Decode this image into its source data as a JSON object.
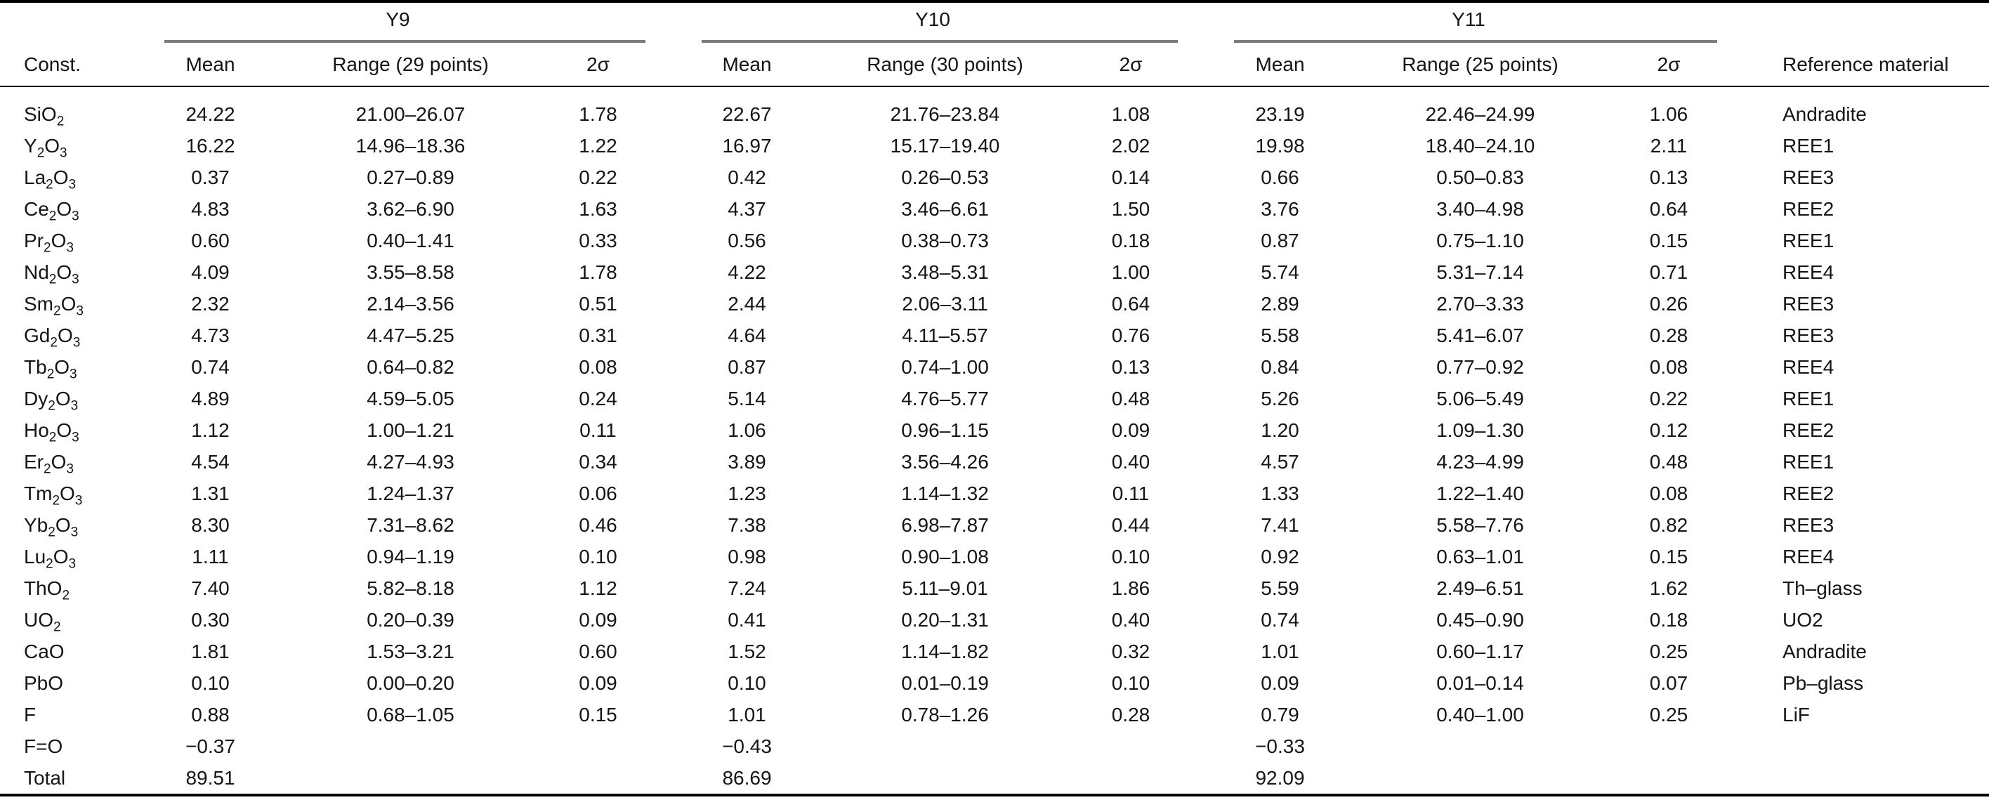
{
  "table": {
    "const_header": "Const.",
    "reference_header": "Reference material",
    "groups": [
      {
        "label": "Y9",
        "mean_label": "Mean",
        "range_label": "Range (29 points)",
        "sigma_label": "2σ"
      },
      {
        "label": "Y10",
        "mean_label": "Mean",
        "range_label": "Range (30 points)",
        "sigma_label": "2σ"
      },
      {
        "label": "Y11",
        "mean_label": "Mean",
        "range_label": "Range (25 points)",
        "sigma_label": "2σ"
      }
    ],
    "rows": [
      {
        "const": [
          [
            "SiO",
            0
          ],
          [
            "2",
            1
          ]
        ],
        "y9": [
          "24.22",
          "21.00–26.07",
          "1.78"
        ],
        "y10": [
          "22.67",
          "21.76–23.84",
          "1.08"
        ],
        "y11": [
          "23.19",
          "22.46–24.99",
          "1.06"
        ],
        "ref": "Andradite"
      },
      {
        "const": [
          [
            "Y",
            0
          ],
          [
            "2",
            1
          ],
          [
            "O",
            0
          ],
          [
            "3",
            1
          ]
        ],
        "y9": [
          "16.22",
          "14.96–18.36",
          "1.22"
        ],
        "y10": [
          "16.97",
          "15.17–19.40",
          "2.02"
        ],
        "y11": [
          "19.98",
          "18.40–24.10",
          "2.11"
        ],
        "ref": "REE1"
      },
      {
        "const": [
          [
            "La",
            0
          ],
          [
            "2",
            1
          ],
          [
            "O",
            0
          ],
          [
            "3",
            1
          ]
        ],
        "y9": [
          "0.37",
          "0.27–0.89",
          "0.22"
        ],
        "y10": [
          "0.42",
          "0.26–0.53",
          "0.14"
        ],
        "y11": [
          "0.66",
          "0.50–0.83",
          "0.13"
        ],
        "ref": "REE3"
      },
      {
        "const": [
          [
            "Ce",
            0
          ],
          [
            "2",
            1
          ],
          [
            "O",
            0
          ],
          [
            "3",
            1
          ]
        ],
        "y9": [
          "4.83",
          "3.62–6.90",
          "1.63"
        ],
        "y10": [
          "4.37",
          "3.46–6.61",
          "1.50"
        ],
        "y11": [
          "3.76",
          "3.40–4.98",
          "0.64"
        ],
        "ref": "REE2"
      },
      {
        "const": [
          [
            "Pr",
            0
          ],
          [
            "2",
            1
          ],
          [
            "O",
            0
          ],
          [
            "3",
            1
          ]
        ],
        "y9": [
          "0.60",
          "0.40–1.41",
          "0.33"
        ],
        "y10": [
          "0.56",
          "0.38–0.73",
          "0.18"
        ],
        "y11": [
          "0.87",
          "0.75–1.10",
          "0.15"
        ],
        "ref": "REE1"
      },
      {
        "const": [
          [
            "Nd",
            0
          ],
          [
            "2",
            1
          ],
          [
            "O",
            0
          ],
          [
            "3",
            1
          ]
        ],
        "y9": [
          "4.09",
          "3.55–8.58",
          "1.78"
        ],
        "y10": [
          "4.22",
          "3.48–5.31",
          "1.00"
        ],
        "y11": [
          "5.74",
          "5.31–7.14",
          "0.71"
        ],
        "ref": "REE4"
      },
      {
        "const": [
          [
            "Sm",
            0
          ],
          [
            "2",
            1
          ],
          [
            "O",
            0
          ],
          [
            "3",
            1
          ]
        ],
        "y9": [
          "2.32",
          "2.14–3.56",
          "0.51"
        ],
        "y10": [
          "2.44",
          "2.06–3.11",
          "0.64"
        ],
        "y11": [
          "2.89",
          "2.70–3.33",
          "0.26"
        ],
        "ref": "REE3"
      },
      {
        "const": [
          [
            "Gd",
            0
          ],
          [
            "2",
            1
          ],
          [
            "O",
            0
          ],
          [
            "3",
            1
          ]
        ],
        "y9": [
          "4.73",
          "4.47–5.25",
          "0.31"
        ],
        "y10": [
          "4.64",
          "4.11–5.57",
          "0.76"
        ],
        "y11": [
          "5.58",
          "5.41–6.07",
          "0.28"
        ],
        "ref": "REE3"
      },
      {
        "const": [
          [
            "Tb",
            0
          ],
          [
            "2",
            1
          ],
          [
            "O",
            0
          ],
          [
            "3",
            1
          ]
        ],
        "y9": [
          "0.74",
          "0.64–0.82",
          "0.08"
        ],
        "y10": [
          "0.87",
          "0.74–1.00",
          "0.13"
        ],
        "y11": [
          "0.84",
          "0.77–0.92",
          "0.08"
        ],
        "ref": "REE4"
      },
      {
        "const": [
          [
            "Dy",
            0
          ],
          [
            "2",
            1
          ],
          [
            "O",
            0
          ],
          [
            "3",
            1
          ]
        ],
        "y9": [
          "4.89",
          "4.59–5.05",
          "0.24"
        ],
        "y10": [
          "5.14",
          "4.76–5.77",
          "0.48"
        ],
        "y11": [
          "5.26",
          "5.06–5.49",
          "0.22"
        ],
        "ref": "REE1"
      },
      {
        "const": [
          [
            "Ho",
            0
          ],
          [
            "2",
            1
          ],
          [
            "O",
            0
          ],
          [
            "3",
            1
          ]
        ],
        "y9": [
          "1.12",
          "1.00–1.21",
          "0.11"
        ],
        "y10": [
          "1.06",
          "0.96–1.15",
          "0.09"
        ],
        "y11": [
          "1.20",
          "1.09–1.30",
          "0.12"
        ],
        "ref": "REE2"
      },
      {
        "const": [
          [
            "Er",
            0
          ],
          [
            "2",
            1
          ],
          [
            "O",
            0
          ],
          [
            "3",
            1
          ]
        ],
        "y9": [
          "4.54",
          "4.27–4.93",
          "0.34"
        ],
        "y10": [
          "3.89",
          "3.56–4.26",
          "0.40"
        ],
        "y11": [
          "4.57",
          "4.23–4.99",
          "0.48"
        ],
        "ref": "REE1"
      },
      {
        "const": [
          [
            "Tm",
            0
          ],
          [
            "2",
            1
          ],
          [
            "O",
            0
          ],
          [
            "3",
            1
          ]
        ],
        "y9": [
          "1.31",
          "1.24–1.37",
          "0.06"
        ],
        "y10": [
          "1.23",
          "1.14–1.32",
          "0.11"
        ],
        "y11": [
          "1.33",
          "1.22–1.40",
          "0.08"
        ],
        "ref": "REE2"
      },
      {
        "const": [
          [
            "Yb",
            0
          ],
          [
            "2",
            1
          ],
          [
            "O",
            0
          ],
          [
            "3",
            1
          ]
        ],
        "y9": [
          "8.30",
          "7.31–8.62",
          "0.46"
        ],
        "y10": [
          "7.38",
          "6.98–7.87",
          "0.44"
        ],
        "y11": [
          "7.41",
          "5.58–7.76",
          "0.82"
        ],
        "ref": "REE3"
      },
      {
        "const": [
          [
            "Lu",
            0
          ],
          [
            "2",
            1
          ],
          [
            "O",
            0
          ],
          [
            "3",
            1
          ]
        ],
        "y9": [
          "1.11",
          "0.94–1.19",
          "0.10"
        ],
        "y10": [
          "0.98",
          "0.90–1.08",
          "0.10"
        ],
        "y11": [
          "0.92",
          "0.63–1.01",
          "0.15"
        ],
        "ref": "REE4"
      },
      {
        "const": [
          [
            "ThO",
            0
          ],
          [
            "2",
            1
          ]
        ],
        "y9": [
          "7.40",
          "5.82–8.18",
          "1.12"
        ],
        "y10": [
          "7.24",
          "5.11–9.01",
          "1.86"
        ],
        "y11": [
          "5.59",
          "2.49–6.51",
          "1.62"
        ],
        "ref": "Th–glass"
      },
      {
        "const": [
          [
            "UO",
            0
          ],
          [
            "2",
            1
          ]
        ],
        "y9": [
          "0.30",
          "0.20–0.39",
          "0.09"
        ],
        "y10": [
          "0.41",
          "0.20–1.31",
          "0.40"
        ],
        "y11": [
          "0.74",
          "0.45–0.90",
          "0.18"
        ],
        "ref": "UO2"
      },
      {
        "const": [
          [
            "CaO",
            0
          ]
        ],
        "y9": [
          "1.81",
          "1.53–3.21",
          "0.60"
        ],
        "y10": [
          "1.52",
          "1.14–1.82",
          "0.32"
        ],
        "y11": [
          "1.01",
          "0.60–1.17",
          "0.25"
        ],
        "ref": "Andradite"
      },
      {
        "const": [
          [
            "PbO",
            0
          ]
        ],
        "y9": [
          "0.10",
          "0.00–0.20",
          "0.09"
        ],
        "y10": [
          "0.10",
          "0.01–0.19",
          "0.10"
        ],
        "y11": [
          "0.09",
          "0.01–0.14",
          "0.07"
        ],
        "ref": "Pb–glass"
      },
      {
        "const": [
          [
            "F",
            0
          ]
        ],
        "y9": [
          "0.88",
          "0.68–1.05",
          "0.15"
        ],
        "y10": [
          "1.01",
          "0.78–1.26",
          "0.28"
        ],
        "y11": [
          "0.79",
          "0.40–1.00",
          "0.25"
        ],
        "ref": "LiF"
      },
      {
        "const": [
          [
            "F=O",
            0
          ]
        ],
        "y9": [
          "−0.37",
          "",
          ""
        ],
        "y10": [
          "−0.43",
          "",
          ""
        ],
        "y11": [
          "−0.33",
          "",
          ""
        ],
        "ref": ""
      },
      {
        "const": [
          [
            "Total",
            0
          ]
        ],
        "y9": [
          "89.51",
          "",
          ""
        ],
        "y10": [
          "86.69",
          "",
          ""
        ],
        "y11": [
          "92.09",
          "",
          ""
        ],
        "ref": ""
      }
    ]
  },
  "colors": {
    "background": "#ffffff",
    "text": "#151515",
    "rule_black": "#000000",
    "rule_gray": "#7c7c7c"
  }
}
